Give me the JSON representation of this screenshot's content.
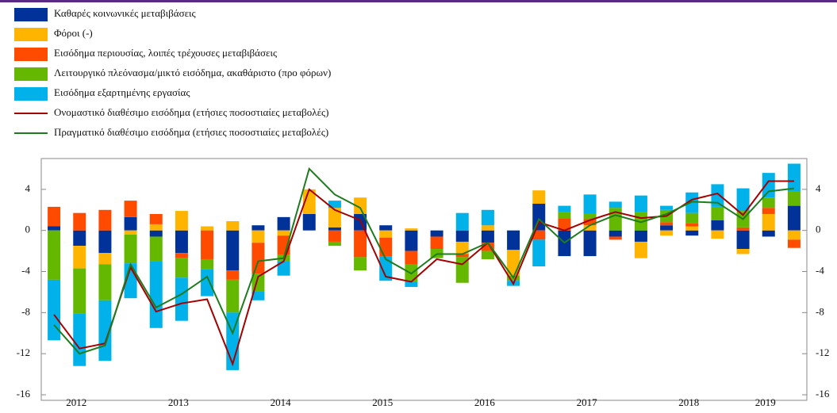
{
  "chart_data": {
    "type": "bar",
    "stacked": true,
    "categories": [
      null,
      "2012",
      null,
      null,
      null,
      "2013",
      null,
      null,
      null,
      "2014",
      null,
      null,
      null,
      "2015",
      null,
      null,
      null,
      "2016",
      null,
      null,
      null,
      "2017",
      null,
      null,
      null,
      "2018",
      null,
      null,
      "2019",
      null
    ],
    "ylim": [
      -16,
      7
    ],
    "yticks": [
      -16,
      -12,
      -8,
      -4,
      0,
      4
    ],
    "y2lim": [
      -16,
      7
    ],
    "y2ticks": [
      -16,
      -12,
      -8,
      -4,
      0,
      4
    ],
    "series": [
      {
        "name": "Καθαρές κοινωνικές μεταβιβάσεις",
        "type": "bar",
        "color": "#003299",
        "values": [
          0.4,
          -1.5,
          -2.2,
          1.3,
          -0.6,
          -2.2,
          0,
          -3.9,
          0.5,
          1.3,
          1.6,
          0.3,
          1.6,
          0.5,
          -2.0,
          -0.6,
          -1.1,
          -1.2,
          -1.9,
          2.6,
          -2.5,
          -2.5,
          -0.6,
          -1.1,
          0.5,
          -0.5,
          1.0,
          -1.8,
          -0.6,
          2.4
        ]
      },
      {
        "name": "Φόροι (-)",
        "type": "bar",
        "color": "#FFB400",
        "values": [
          0,
          -2.2,
          -1.1,
          -0.4,
          0.6,
          1.9,
          0.4,
          0.9,
          -1.2,
          -0.5,
          2.4,
          1.9,
          1.6,
          -0.7,
          0.2,
          0,
          -1.2,
          0.5,
          -2.5,
          1.3,
          0,
          0.5,
          0,
          -1.6,
          -0.5,
          0.4,
          -0.8,
          -0.5,
          1.6,
          -0.9
        ]
      },
      {
        "name": "Εισόδημα περιουσίας, λοιπές τρέχουσες μεταβιβάσεις",
        "type": "bar",
        "color": "#FF4B00",
        "values": [
          1.9,
          1.7,
          2.0,
          1.6,
          1.0,
          -0.5,
          -2.8,
          -0.9,
          -3.0,
          -1.9,
          0,
          -1.1,
          -2.6,
          -1.8,
          -1.3,
          -1.2,
          -0.3,
          -0.8,
          0,
          -0.9,
          1.2,
          0.6,
          -0.3,
          0,
          0.3,
          0.3,
          0,
          0.3,
          0.6,
          -0.8
        ]
      },
      {
        "name": "Λειτουργικό πλεόνασμα/μικτό εισόδημα, ακαθάριστο (προ φόρων)",
        "type": "bar",
        "color": "#65B800",
        "values": [
          -4.8,
          -4.4,
          -3.5,
          -2.8,
          -2.4,
          -1.9,
          -1.0,
          -3.2,
          -1.7,
          -0.6,
          0,
          -0.4,
          -1.3,
          0,
          -1.7,
          -0.9,
          -2.5,
          -0.8,
          -0.5,
          0,
          0.6,
          0.5,
          2.2,
          1.8,
          1.2,
          1.0,
          1.3,
          1.6,
          1.0,
          1.4
        ]
      },
      {
        "name": "Εισόδημα εξαρτημένης εργασίας",
        "type": "bar",
        "color": "#00B1EA",
        "values": [
          -5.9,
          -5.1,
          -5.9,
          -3.4,
          -6.5,
          -4.2,
          -2.6,
          -5.6,
          -0.9,
          -1.4,
          0,
          0.7,
          0,
          -2.4,
          -0.5,
          0,
          1.7,
          1.5,
          -0.5,
          -2.6,
          0.6,
          1.9,
          0.6,
          1.6,
          0.4,
          2.0,
          2.2,
          2.2,
          2.4,
          2.7
        ]
      },
      {
        "name": "Ονομαστικό διαθέσιμο εισόδημα (ετήσιες ποσοστιαίες μεταβολές)",
        "type": "line",
        "color": "#A50000",
        "values": [
          -8.2,
          -11.5,
          -11.0,
          -3.6,
          -7.9,
          -7.1,
          -6.7,
          -13.0,
          -4.5,
          -3.0,
          4.0,
          2.0,
          1.0,
          -4.5,
          -5.0,
          -2.8,
          -3.3,
          -1.2,
          -5.2,
          0.8,
          0,
          1.0,
          1.8,
          1.2,
          1.4,
          3.0,
          3.6,
          1.5,
          4.8,
          4.8
        ]
      },
      {
        "name": "Πραγματικό διαθέσιμο εισόδημα (ετήσιες ποσοστιαίες μεταβολές)",
        "type": "line",
        "color": "#1E7B1E",
        "values": [
          -9.2,
          -12.0,
          -11.2,
          -3.3,
          -7.5,
          -6.2,
          -4.5,
          -10.0,
          -3.0,
          -2.7,
          6.0,
          3.5,
          2.2,
          -2.8,
          -4.2,
          -2.3,
          -2.3,
          -1.2,
          -4.6,
          1.1,
          -1.2,
          0.5,
          1.5,
          0.8,
          1.6,
          2.8,
          2.7,
          1.1,
          3.8,
          4.1
        ]
      }
    ]
  }
}
